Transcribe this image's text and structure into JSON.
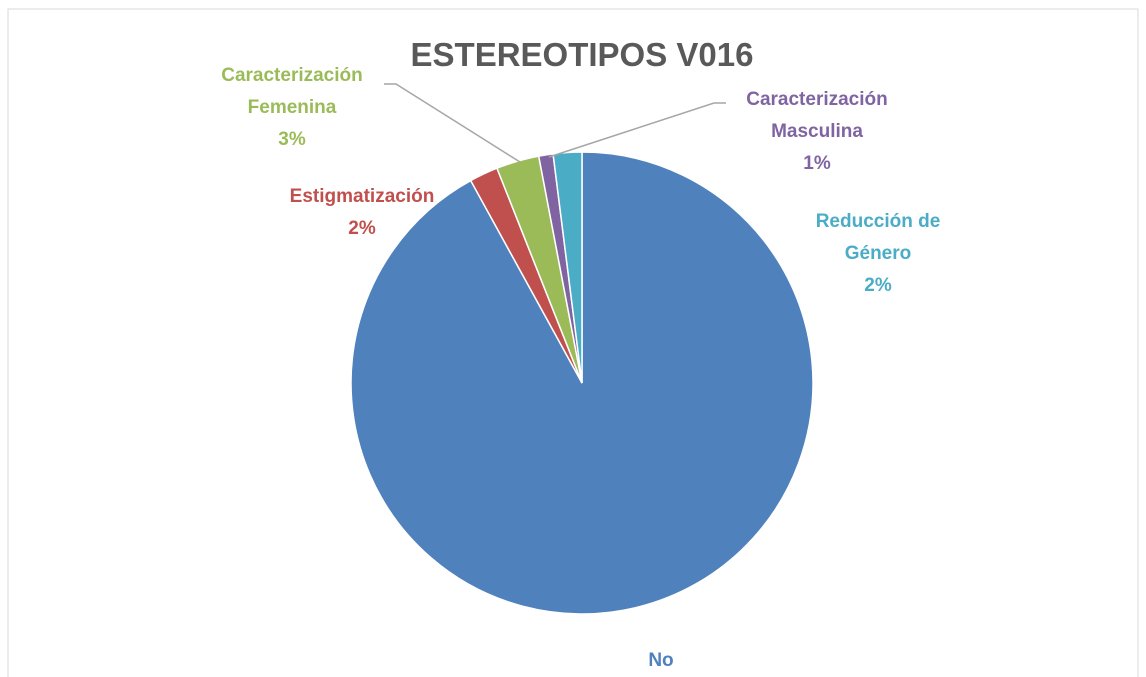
{
  "chart_data": {
    "type": "pie",
    "title": "ESTEREOTIPOS V016",
    "categories": [
      "No",
      "Estigmatización",
      "Caracterización Femenina",
      "Caracterización Masculina",
      "Reducción de Género"
    ],
    "values": [
      92,
      2,
      3,
      1,
      2
    ],
    "value_labels": [
      "92%",
      "2%",
      "3%",
      "1%",
      "2%"
    ],
    "colors": [
      "#4f81bd",
      "#c0504d",
      "#9bbb59",
      "#8064a2",
      "#4bacc6"
    ]
  }
}
